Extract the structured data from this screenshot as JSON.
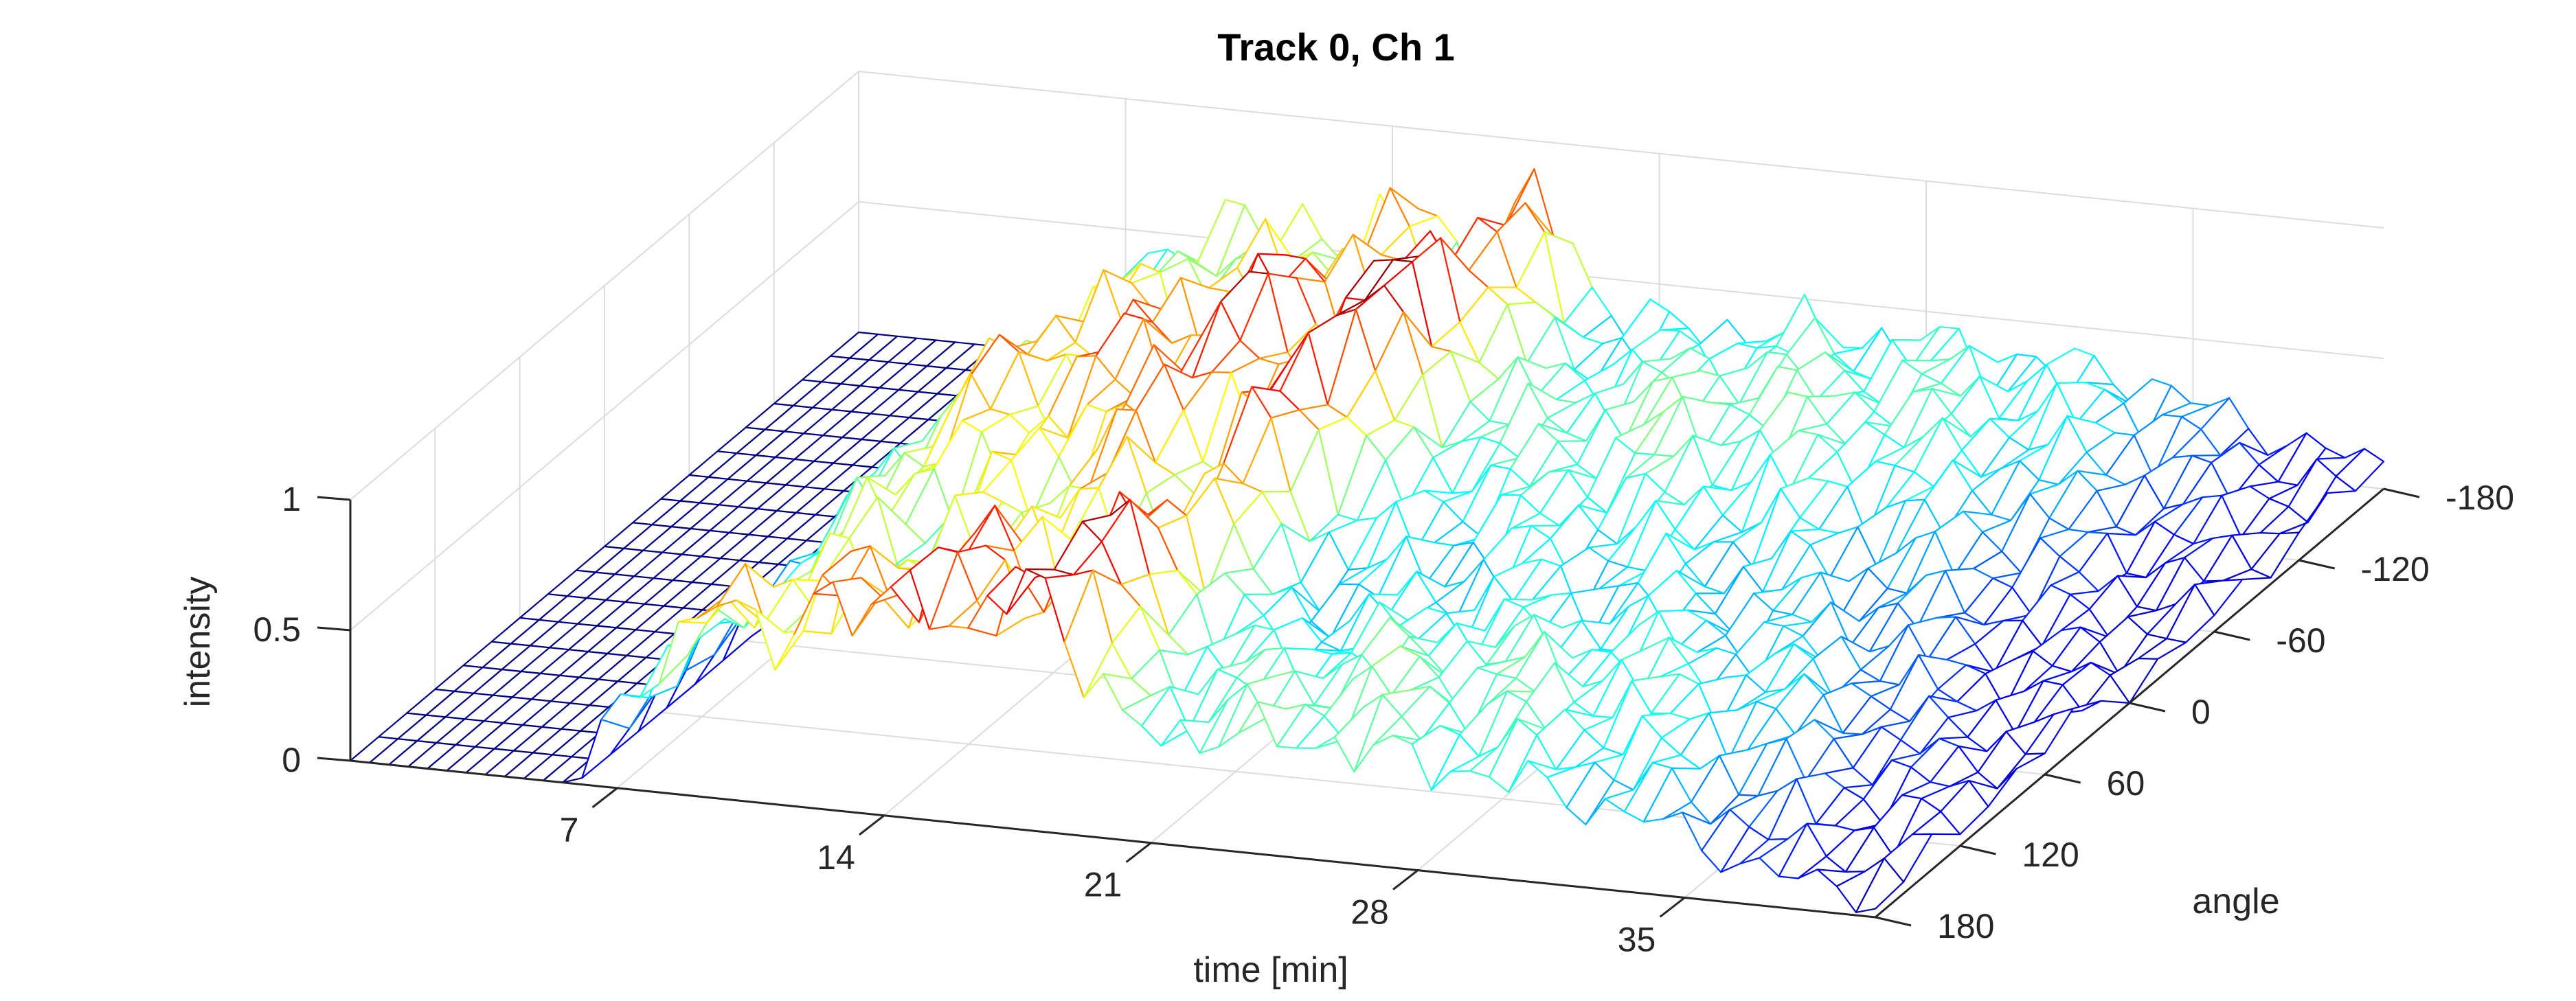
{
  "chart_data": {
    "type": "mesh3d",
    "title": "Track 0, Ch 1",
    "xlabel": "time [min]",
    "ylabel": "angle",
    "zlabel": "intensity",
    "xlim": [
      0,
      40
    ],
    "ylim": [
      -180,
      180
    ],
    "zlim": [
      0,
      1
    ],
    "x_ticks": [
      7,
      14,
      21,
      28,
      35
    ],
    "y_ticks": [
      -180,
      -120,
      -60,
      0,
      60,
      120,
      180
    ],
    "z_ticks": [
      0,
      0.5,
      1
    ],
    "z_tick_labels": [
      "0",
      "0.5",
      "1"
    ],
    "grid": true,
    "colormap": "jet",
    "time_bins": 80,
    "angle_bins": 19,
    "mean_intensity_profile": [
      {
        "x": 0,
        "z": 0.0
      },
      {
        "x": 6,
        "z": 0.0
      },
      {
        "x": 7,
        "z": 0.3
      },
      {
        "x": 8,
        "z": 0.45
      },
      {
        "x": 10,
        "z": 0.7
      },
      {
        "x": 11,
        "z": 0.5
      },
      {
        "x": 12,
        "z": 0.75
      },
      {
        "x": 13,
        "z": 0.6
      },
      {
        "x": 15,
        "z": 0.85
      },
      {
        "x": 16,
        "z": 0.55
      },
      {
        "x": 18,
        "z": 0.95
      },
      {
        "x": 19,
        "z": 0.6
      },
      {
        "x": 20,
        "z": 0.4
      },
      {
        "x": 22,
        "z": 0.38
      },
      {
        "x": 25,
        "z": 0.42
      },
      {
        "x": 30,
        "z": 0.38
      },
      {
        "x": 34,
        "z": 0.3
      },
      {
        "x": 37,
        "z": 0.15
      },
      {
        "x": 40,
        "z": 0.08
      }
    ]
  }
}
